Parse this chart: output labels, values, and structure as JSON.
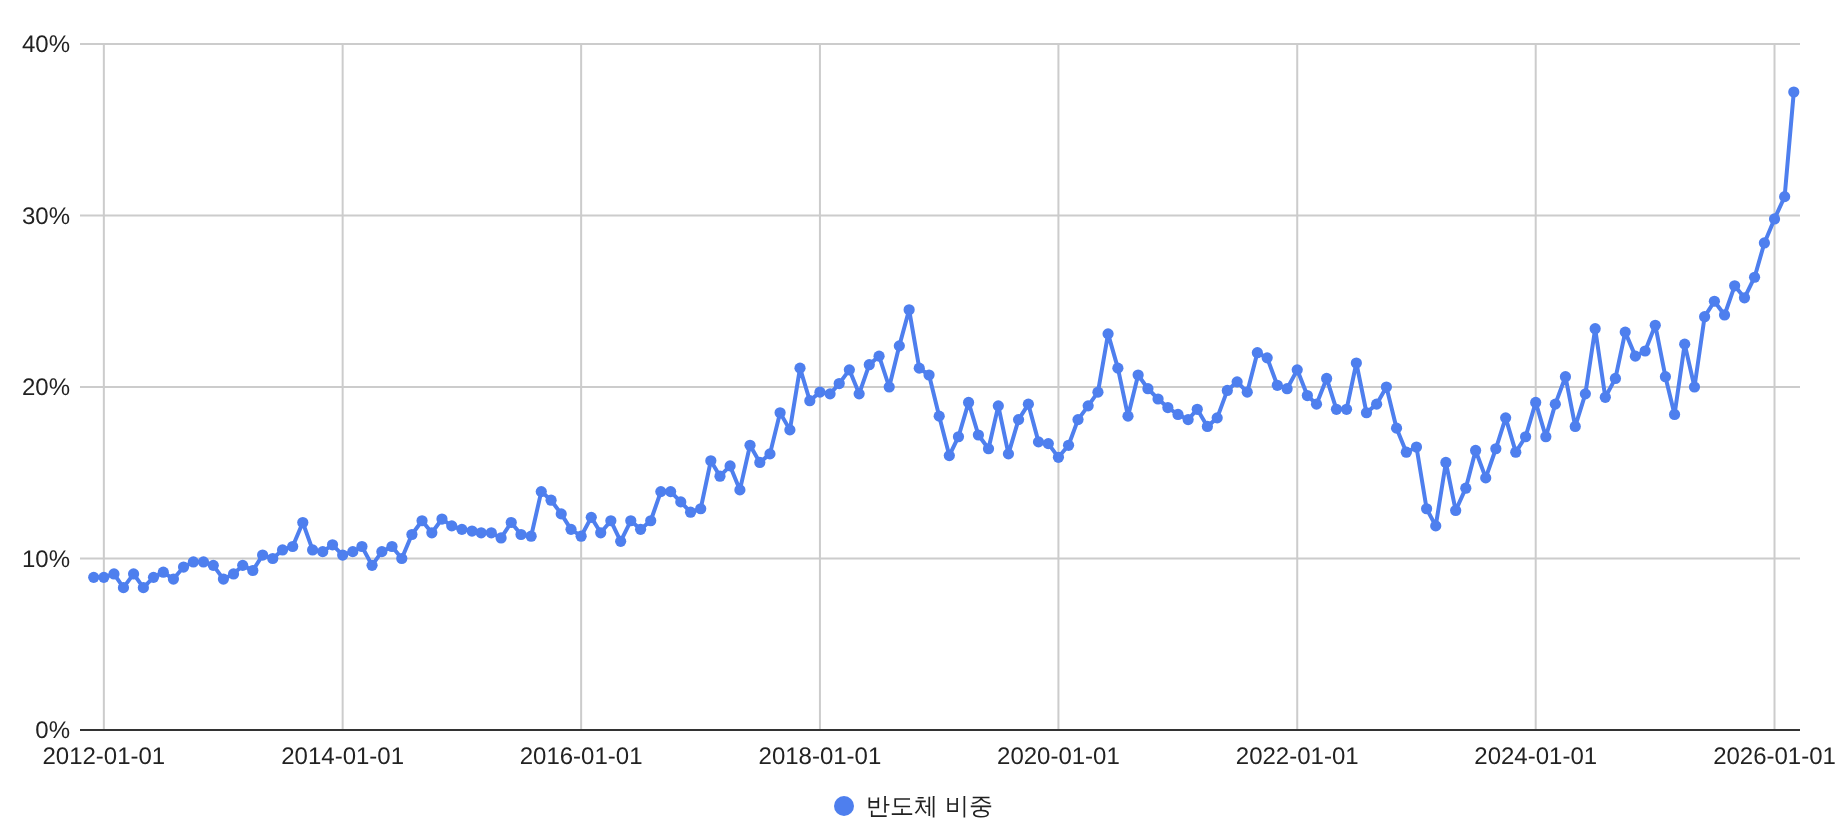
{
  "chart_data": {
    "type": "line",
    "x": [
      "2011-12",
      "2012-01",
      "2012-02",
      "2012-03",
      "2012-04",
      "2012-05",
      "2012-06",
      "2012-07",
      "2012-08",
      "2012-09",
      "2012-10",
      "2012-11",
      "2012-12",
      "2013-01",
      "2013-02",
      "2013-03",
      "2013-04",
      "2013-05",
      "2013-06",
      "2013-07",
      "2013-08",
      "2013-09",
      "2013-10",
      "2013-11",
      "2013-12",
      "2014-01",
      "2014-02",
      "2014-03",
      "2014-04",
      "2014-05",
      "2014-06",
      "2014-07",
      "2014-08",
      "2014-09",
      "2014-10",
      "2014-11",
      "2014-12",
      "2015-01",
      "2015-02",
      "2015-03",
      "2015-04",
      "2015-05",
      "2015-06",
      "2015-07",
      "2015-08",
      "2015-09",
      "2015-10",
      "2015-11",
      "2015-12",
      "2016-01",
      "2016-02",
      "2016-03",
      "2016-04",
      "2016-05",
      "2016-06",
      "2016-07",
      "2016-08",
      "2016-09",
      "2016-10",
      "2016-11",
      "2016-12",
      "2017-01",
      "2017-02",
      "2017-03",
      "2017-04",
      "2017-05",
      "2017-06",
      "2017-07",
      "2017-08",
      "2017-09",
      "2017-10",
      "2017-11",
      "2017-12",
      "2018-01",
      "2018-02",
      "2018-03",
      "2018-04",
      "2018-05",
      "2018-06",
      "2018-07",
      "2018-08",
      "2018-09",
      "2018-10",
      "2018-11",
      "2018-12",
      "2019-01",
      "2019-02",
      "2019-03",
      "2019-04",
      "2019-05",
      "2019-06",
      "2019-07",
      "2019-08",
      "2019-09",
      "2019-10",
      "2019-11",
      "2019-12",
      "2020-01",
      "2020-02",
      "2020-03",
      "2020-04",
      "2020-05",
      "2020-06",
      "2020-07",
      "2020-08",
      "2020-09",
      "2020-10",
      "2020-11",
      "2020-12",
      "2021-01",
      "2021-02",
      "2021-03",
      "2021-04",
      "2021-05",
      "2021-06",
      "2021-07",
      "2021-08",
      "2021-09",
      "2021-10",
      "2021-11",
      "2021-12",
      "2022-01",
      "2022-02",
      "2022-03",
      "2022-04",
      "2022-05",
      "2022-06",
      "2022-07",
      "2022-08",
      "2022-09",
      "2022-10",
      "2022-11",
      "2022-12",
      "2023-01",
      "2023-02",
      "2023-03",
      "2023-04",
      "2023-05",
      "2023-06",
      "2023-07",
      "2023-08",
      "2023-09",
      "2023-10",
      "2023-11",
      "2023-12",
      "2024-01",
      "2024-02",
      "2024-03",
      "2024-04",
      "2024-05",
      "2024-06",
      "2024-07",
      "2024-08",
      "2024-09",
      "2024-10",
      "2024-11",
      "2024-12",
      "2025-01",
      "2025-02",
      "2025-03",
      "2025-04",
      "2025-05",
      "2025-06",
      "2025-07",
      "2025-08",
      "2025-09",
      "2025-10",
      "2025-11",
      "2025-12",
      "2026-01",
      "2026-02",
      "2026-03"
    ],
    "series": [
      {
        "name": "반도체 비중",
        "color": "#4e7fee",
        "values": [
          8.9,
          8.9,
          9.1,
          8.3,
          9.1,
          8.3,
          8.9,
          9.2,
          8.8,
          9.5,
          9.8,
          9.8,
          9.6,
          8.8,
          9.1,
          9.6,
          9.3,
          10.2,
          10.0,
          10.5,
          10.7,
          12.1,
          10.5,
          10.4,
          10.8,
          10.2,
          10.4,
          10.7,
          9.6,
          10.4,
          10.7,
          10.0,
          11.4,
          12.2,
          11.5,
          12.3,
          11.9,
          11.7,
          11.6,
          11.5,
          11.5,
          11.2,
          12.1,
          11.4,
          11.3,
          13.9,
          13.4,
          12.6,
          11.7,
          11.3,
          12.4,
          11.5,
          12.2,
          11.0,
          12.2,
          11.7,
          12.2,
          13.9,
          13.9,
          13.3,
          12.7,
          12.9,
          15.7,
          14.8,
          15.4,
          14.0,
          16.6,
          15.6,
          16.1,
          18.5,
          17.5,
          21.1,
          19.2,
          19.7,
          19.6,
          20.2,
          21.0,
          19.6,
          21.3,
          21.8,
          20.0,
          22.4,
          24.5,
          21.1,
          20.7,
          18.3,
          16.0,
          17.1,
          19.1,
          17.2,
          16.4,
          18.9,
          16.1,
          18.1,
          19.0,
          16.8,
          16.7,
          15.9,
          16.6,
          18.1,
          18.9,
          19.7,
          23.1,
          21.1,
          18.3,
          20.7,
          19.9,
          19.3,
          18.8,
          18.4,
          18.1,
          18.7,
          17.7,
          18.2,
          19.8,
          20.3,
          19.7,
          22.0,
          21.7,
          20.1,
          19.9,
          21.0,
          19.5,
          19.0,
          20.5,
          18.7,
          18.7,
          21.4,
          18.5,
          19.0,
          20.0,
          17.6,
          16.2,
          16.5,
          12.9,
          11.9,
          15.6,
          12.8,
          14.1,
          16.3,
          14.7,
          16.4,
          18.2,
          16.2,
          17.1,
          19.1,
          17.1,
          19.0,
          20.6,
          17.7,
          19.6,
          23.4,
          19.4,
          20.5,
          23.2,
          21.8,
          22.1,
          23.6,
          20.6,
          18.4,
          22.5,
          20.0,
          24.1,
          25.0,
          24.2,
          25.9,
          25.2,
          26.4,
          28.4,
          29.8,
          31.1,
          37.2
        ]
      }
    ],
    "xlim": [
      "2011-10-20",
      "2026-03-20"
    ],
    "xticks": [
      "2012-01-01",
      "2014-01-01",
      "2016-01-01",
      "2018-01-01",
      "2020-01-01",
      "2022-01-01",
      "2024-01-01",
      "2026-01-01"
    ],
    "ylim": [
      0,
      40
    ],
    "yticks": [
      {
        "value": 0,
        "label": "0%"
      },
      {
        "value": 10,
        "label": "10%"
      },
      {
        "value": 20,
        "label": "20%"
      },
      {
        "value": 30,
        "label": "30%"
      },
      {
        "value": 40,
        "label": "40%"
      }
    ],
    "grid": true,
    "legend": "bottom",
    "marker": "circle",
    "line_style": "solid"
  }
}
